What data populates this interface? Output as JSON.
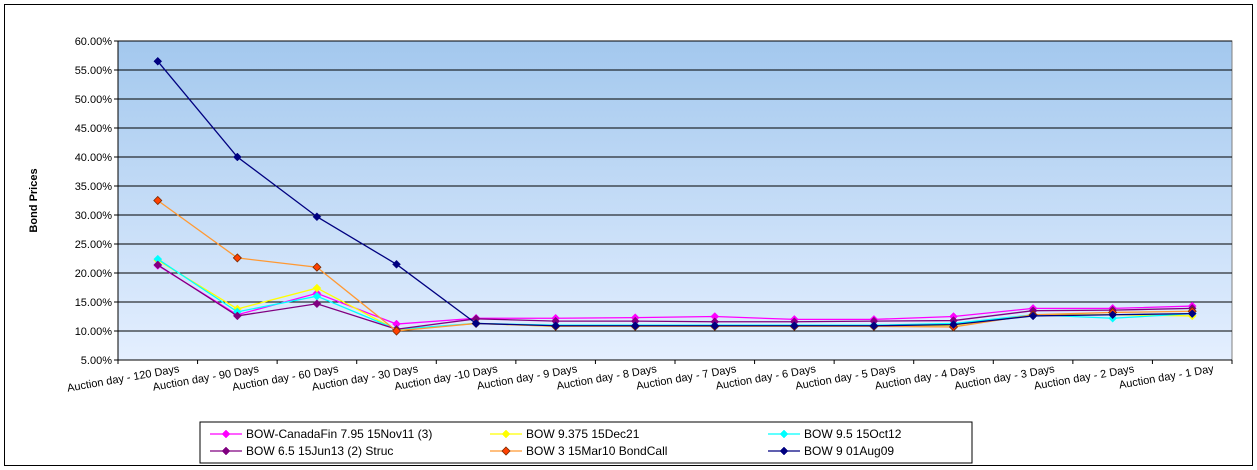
{
  "chart_data": {
    "type": "line",
    "title": "",
    "xlabel": "",
    "ylabel": "Bond Prices",
    "ylim": [
      0.05,
      0.6
    ],
    "yticks": [
      "5.00%",
      "10.00%",
      "15.00%",
      "20.00%",
      "25.00%",
      "30.00%",
      "35.00%",
      "40.00%",
      "45.00%",
      "50.00%",
      "55.00%",
      "60.00%"
    ],
    "ytick_values": [
      0.05,
      0.1,
      0.15,
      0.2,
      0.25,
      0.3,
      0.35,
      0.4,
      0.45,
      0.5,
      0.55,
      0.6
    ],
    "grid": true,
    "legend_position": "bottom",
    "plot_background": [
      "#a3c8ee",
      "#e4efff"
    ],
    "categories": [
      "Auction day - 120 Days",
      "Auction day - 90 Days",
      "Auction day - 60 Days",
      "Auction day - 30 Days",
      "Auction day -10 Days",
      "Auction day - 9 Days",
      "Auction day - 8 Days",
      "Auction day - 7 Days",
      "Auction day - 6 Days",
      "Auction day - 5 Days",
      "Auction day - 4 Days",
      "Auction day - 3 Days",
      "Auction day - 2 Days",
      "Auction day - 1 Day"
    ],
    "series": [
      {
        "name": "BOW-CanadaFin 7.95 15Nov11 (3)",
        "color": "#ff00ff",
        "marker_fill": "#ff00ff",
        "values": [
          0.213,
          0.128,
          0.165,
          0.112,
          0.122,
          0.122,
          0.123,
          0.125,
          0.12,
          0.12,
          0.125,
          0.139,
          0.139,
          0.143
        ]
      },
      {
        "name": "BOW 9.375 15Dec21",
        "color": "#ffff00",
        "marker_fill": "#ffff00",
        "values": [
          0.222,
          0.138,
          0.174,
          0.102,
          0.113,
          0.108,
          0.108,
          0.108,
          0.108,
          0.108,
          0.11,
          0.128,
          0.128,
          0.126
        ]
      },
      {
        "name": "BOW 9.5 15Oct12",
        "color": "#00ffff",
        "marker_fill": "#00ffff",
        "values": [
          0.224,
          0.133,
          0.16,
          0.103,
          0.113,
          0.11,
          0.11,
          0.11,
          0.11,
          0.11,
          0.113,
          0.128,
          0.122,
          0.13
        ]
      },
      {
        "name": "BOW 6.5 15Jun13 (2) Struc",
        "color": "#800080",
        "marker_fill": "#800080",
        "values": [
          0.214,
          0.126,
          0.147,
          0.103,
          0.121,
          0.117,
          0.117,
          0.116,
          0.116,
          0.117,
          0.118,
          0.135,
          0.136,
          0.139
        ]
      },
      {
        "name": "BOW 3 15Mar10 BondCall",
        "color": "#ff9933",
        "marker_fill": "#ff4000",
        "marker_stroke": "#7a2a00",
        "values": [
          0.325,
          0.226,
          0.21,
          0.1,
          0.113,
          0.108,
          0.108,
          0.108,
          0.108,
          0.108,
          0.107,
          0.128,
          0.132,
          0.134
        ]
      },
      {
        "name": "BOW 9 01Aug09",
        "color": "#000080",
        "marker_fill": "#000080",
        "values": [
          0.565,
          0.4,
          0.297,
          0.215,
          0.113,
          0.109,
          0.109,
          0.109,
          0.109,
          0.109,
          0.111,
          0.126,
          0.128,
          0.13
        ]
      }
    ]
  }
}
